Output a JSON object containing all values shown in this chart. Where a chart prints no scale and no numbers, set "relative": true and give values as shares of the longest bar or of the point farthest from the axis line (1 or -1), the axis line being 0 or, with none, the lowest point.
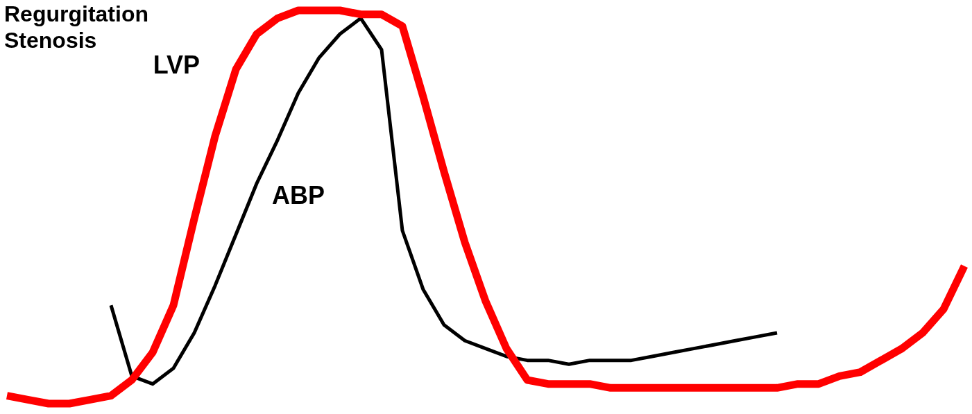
{
  "chart_data": {
    "type": "line",
    "relative": true,
    "marker": "none",
    "legend": false,
    "annotations": [
      "Regurgitation",
      "Stenosis"
    ],
    "categories": [
      null,
      null,
      null,
      null,
      null,
      null,
      null,
      null,
      null,
      null,
      null,
      null,
      null,
      null,
      null,
      null,
      null,
      null,
      null,
      null,
      null,
      null,
      null,
      null,
      null,
      null,
      null,
      null,
      null,
      null,
      null,
      null,
      null,
      null,
      null,
      null,
      null,
      null,
      null,
      null,
      null,
      null,
      null,
      null,
      null,
      null,
      null
    ],
    "series": [
      {
        "name": "LVP",
        "color": "#ff0000",
        "values": [
          0.02,
          0.01,
          0,
          0,
          0.01,
          0.02,
          0.06,
          0.13,
          0.25,
          0.47,
          0.68,
          0.85,
          0.94,
          0.98,
          1,
          1,
          1,
          0.99,
          0.99,
          0.96,
          0.78,
          0.59,
          0.41,
          0.26,
          0.14,
          0.06,
          0.05,
          0.05,
          0.05,
          0.04,
          0.04,
          0.04,
          0.04,
          0.04,
          0.04,
          0.04,
          0.04,
          0.04,
          0.05,
          0.05,
          0.07,
          0.08,
          0.11,
          0.14,
          0.18,
          0.24,
          0.35
        ]
      },
      {
        "name": "ABP",
        "color": "#000000",
        "values": [
          null,
          null,
          null,
          null,
          null,
          0.25,
          0.07,
          0.05,
          0.09,
          0.18,
          0.3,
          0.43,
          0.56,
          0.67,
          0.79,
          0.88,
          0.94,
          0.98,
          0.9,
          0.44,
          0.29,
          0.2,
          0.16,
          0.14,
          0.12,
          0.11,
          0.11,
          0.1,
          0.11,
          0.11,
          0.11,
          0.12,
          0.13,
          0.14,
          0.15,
          0.16,
          0.17,
          0.18,
          null,
          null,
          null,
          null,
          null,
          null,
          null,
          null,
          null
        ]
      }
    ]
  }
}
